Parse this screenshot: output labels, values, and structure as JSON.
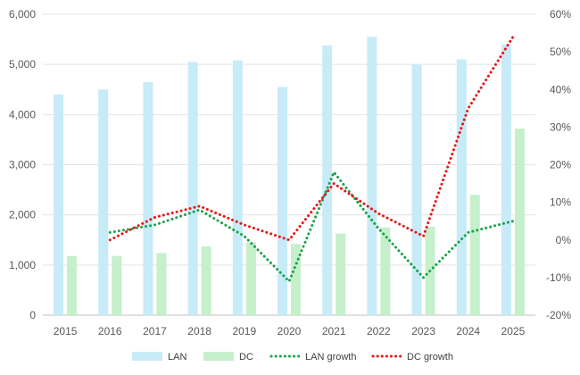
{
  "chart_data": {
    "type": "bar",
    "categories": [
      "2015",
      "2016",
      "2017",
      "2018",
      "2019",
      "2020",
      "2021",
      "2022",
      "2023",
      "2024",
      "2025"
    ],
    "series": [
      {
        "name": "LAN",
        "kind": "bar",
        "axis": "left",
        "color": "#c7ebf7",
        "values": [
          4400,
          4500,
          4650,
          5050,
          5080,
          4550,
          5380,
          5550,
          5000,
          5100,
          5400
        ]
      },
      {
        "name": "DC",
        "kind": "bar",
        "axis": "left",
        "color": "#c6efcc",
        "values": [
          1180,
          1180,
          1240,
          1370,
          1450,
          1420,
          1630,
          1750,
          1760,
          2400,
          3720
        ]
      },
      {
        "name": "LAN growth",
        "kind": "line",
        "axis": "right",
        "color": "#1aa34a",
        "line_style": "dotted",
        "values": [
          null,
          2,
          4,
          8,
          1,
          -11,
          18,
          3,
          -10,
          2,
          5
        ]
      },
      {
        "name": "DC growth",
        "kind": "line",
        "axis": "right",
        "color": "#e81717",
        "line_style": "dotted",
        "values": [
          null,
          0,
          6,
          9,
          4,
          0,
          15,
          7,
          1,
          35,
          54
        ]
      }
    ],
    "y_left": {
      "ylim": [
        0,
        6000
      ],
      "ticks": [
        0,
        1000,
        2000,
        3000,
        4000,
        5000,
        6000
      ],
      "tick_labels": [
        "0",
        "1,000",
        "2,000",
        "3,000",
        "4,000",
        "5,000",
        "6,000"
      ]
    },
    "y_right": {
      "ylim": [
        -20,
        60
      ],
      "ticks": [
        -20,
        -10,
        0,
        10,
        20,
        30,
        40,
        50,
        60
      ],
      "tick_labels": [
        "-20%",
        "-10%",
        "0%",
        "10%",
        "20%",
        "30%",
        "40%",
        "50%",
        "60%"
      ]
    },
    "grid": true,
    "legend_position": "bottom",
    "title": "",
    "xlabel": "",
    "ylabel": ""
  }
}
